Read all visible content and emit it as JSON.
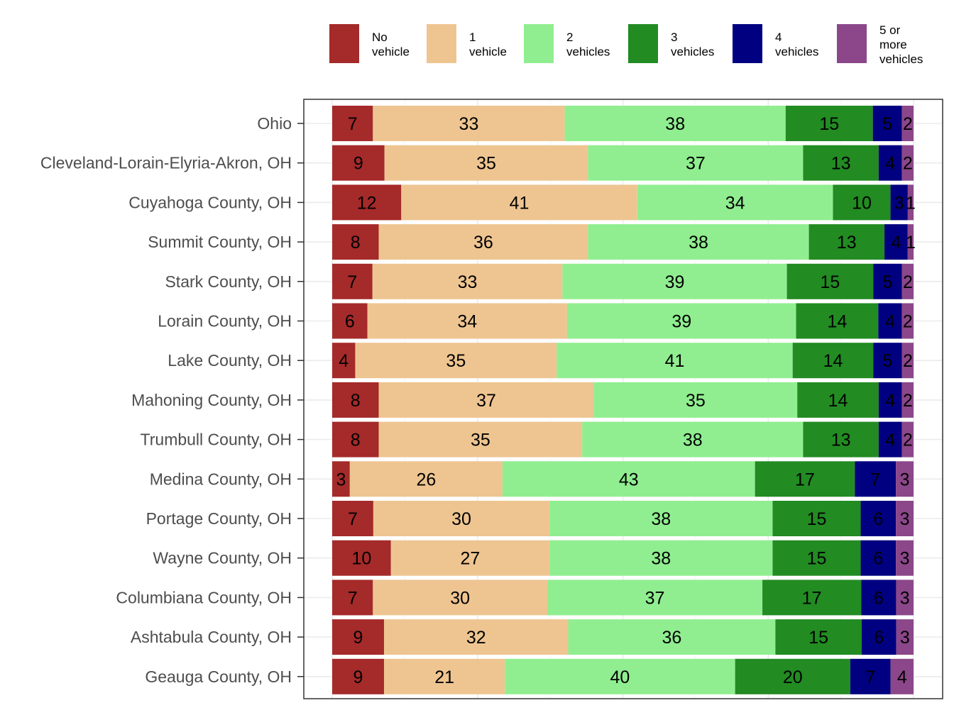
{
  "chart_data": {
    "type": "bar",
    "orientation": "horizontal",
    "stacked": "percent",
    "categories": [
      "Ohio",
      "Cleveland-Lorain-Elyria-Akron, OH",
      "Cuyahoga County, OH",
      "Summit County, OH",
      "Stark County, OH",
      "Lorain County, OH",
      "Lake County, OH",
      "Mahoning County, OH",
      "Trumbull County, OH",
      "Medina County, OH",
      "Portage County, OH",
      "Wayne County, OH",
      "Columbiana County, OH",
      "Ashtabula County, OH",
      "Geauga County, OH"
    ],
    "series": [
      {
        "name": "No vehicle",
        "legend_lines": [
          "No",
          "vehicle"
        ],
        "color": "#A52A2A",
        "values": [
          7,
          9,
          12,
          8,
          7,
          6,
          4,
          8,
          8,
          3,
          7,
          10,
          7,
          9,
          9
        ]
      },
      {
        "name": "1 vehicle",
        "legend_lines": [
          "1",
          "vehicle"
        ],
        "color": "#EEC591",
        "values": [
          33,
          35,
          41,
          36,
          33,
          34,
          35,
          37,
          35,
          26,
          30,
          27,
          30,
          32,
          21
        ]
      },
      {
        "name": "2 vehicles",
        "legend_lines": [
          "2",
          "vehicles"
        ],
        "color": "#90EE90",
        "values": [
          38,
          37,
          34,
          38,
          39,
          39,
          41,
          35,
          38,
          43,
          38,
          38,
          37,
          36,
          40
        ]
      },
      {
        "name": "3 vehicles",
        "legend_lines": [
          "3",
          "vehicles"
        ],
        "color": "#228B22",
        "values": [
          15,
          13,
          10,
          13,
          15,
          14,
          14,
          14,
          13,
          17,
          15,
          15,
          17,
          15,
          20
        ]
      },
      {
        "name": "4 vehicles",
        "legend_lines": [
          "4",
          "vehicles"
        ],
        "color": "#000080",
        "values": [
          5,
          4,
          3,
          4,
          5,
          4,
          5,
          4,
          4,
          7,
          6,
          6,
          6,
          6,
          7
        ]
      },
      {
        "name": "5 or more vehicles",
        "legend_lines": [
          "5 or",
          "more",
          "vehicles"
        ],
        "color": "#8B4789",
        "values": [
          2,
          2,
          1,
          1,
          2,
          2,
          2,
          2,
          2,
          3,
          3,
          3,
          3,
          3,
          4
        ]
      }
    ],
    "title": "",
    "xlabel": "",
    "ylabel": "",
    "legend_position": "top",
    "grid": true,
    "panel_border": true
  }
}
